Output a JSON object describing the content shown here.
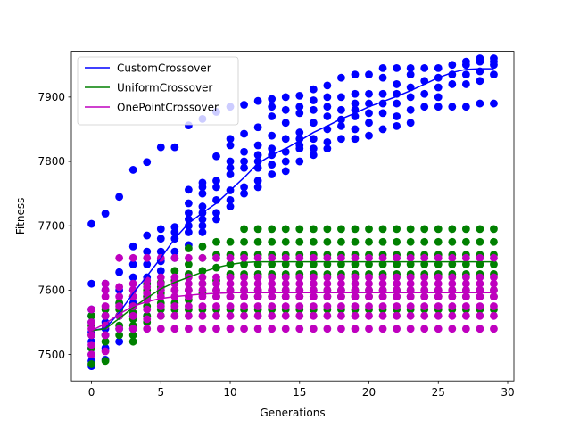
{
  "chart_data": {
    "type": "scatter",
    "xlabel": "Generations",
    "ylabel": "Fitness",
    "xlim": [
      -1.45,
      30.45
    ],
    "ylim": [
      7459,
      7971
    ],
    "xticks": [
      0,
      5,
      10,
      15,
      20,
      25,
      30
    ],
    "yticks": [
      7500,
      7600,
      7700,
      7800,
      7900
    ],
    "grid": false,
    "legend_position": "top-left",
    "generations": [
      0,
      1,
      2,
      3,
      4,
      5,
      6,
      7,
      8,
      9,
      10,
      11,
      12,
      13,
      14,
      15,
      16,
      17,
      18,
      19,
      20,
      21,
      22,
      23,
      24,
      25,
      26,
      27,
      28,
      29
    ],
    "series": [
      {
        "name": "CustomCrossover",
        "color": "#0000ff",
        "line": [
          7537,
          7541,
          7565,
          7595,
          7622,
          7650,
          7680,
          7704,
          7720,
          7735,
          7755,
          7775,
          7797,
          7810,
          7820,
          7832,
          7845,
          7855,
          7866,
          7875,
          7885,
          7893,
          7901,
          7910,
          7920,
          7930,
          7938,
          7943,
          7944,
          7944
        ],
        "points": [
          [
            7482,
            7490,
            7500,
            7510,
            7520,
            7535,
            7550,
            7560,
            7570,
            7610,
            7703
          ],
          [
            7492,
            7510,
            7530,
            7540,
            7550,
            7560,
            7600,
            7610,
            7719
          ],
          [
            7520,
            7540,
            7560,
            7580,
            7600,
            7628,
            7745
          ],
          [
            7540,
            7560,
            7580,
            7600,
            7620,
            7640,
            7668,
            7787
          ],
          [
            7560,
            7590,
            7610,
            7620,
            7640,
            7660,
            7685,
            7799
          ],
          [
            7600,
            7610,
            7630,
            7645,
            7660,
            7680,
            7695,
            7822
          ],
          [
            7650,
            7660,
            7680,
            7690,
            7698,
            7822
          ],
          [
            7670,
            7690,
            7700,
            7710,
            7720,
            7735,
            7756,
            7856
          ],
          [
            7690,
            7700,
            7710,
            7720,
            7730,
            7750,
            7760,
            7767,
            7866
          ],
          [
            7710,
            7720,
            7740,
            7760,
            7770,
            7808,
            7877
          ],
          [
            7730,
            7740,
            7755,
            7780,
            7790,
            7800,
            7825,
            7835,
            7885
          ],
          [
            7750,
            7760,
            7790,
            7800,
            7815,
            7843,
            7888
          ],
          [
            7760,
            7770,
            7790,
            7800,
            7810,
            7825,
            7853,
            7894
          ],
          [
            7780,
            7795,
            7810,
            7820,
            7840,
            7870,
            7885,
            7897
          ],
          [
            7785,
            7800,
            7815,
            7835,
            7860,
            7880,
            7900
          ],
          [
            7800,
            7820,
            7825,
            7835,
            7845,
            7875,
            7885,
            7902
          ],
          [
            7810,
            7820,
            7835,
            7860,
            7880,
            7895,
            7912
          ],
          [
            7820,
            7830,
            7850,
            7870,
            7885,
            7900,
            7918
          ],
          [
            7835,
            7855,
            7865,
            7880,
            7900,
            7930
          ],
          [
            7835,
            7850,
            7870,
            7880,
            7890,
            7905,
            7935
          ],
          [
            7840,
            7860,
            7875,
            7890,
            7905,
            7935
          ],
          [
            7850,
            7875,
            7890,
            7905,
            7930,
            7945
          ],
          [
            7855,
            7870,
            7890,
            7905,
            7920,
            7945
          ],
          [
            7860,
            7880,
            7900,
            7915,
            7935,
            7945
          ],
          [
            7885,
            7905,
            7925,
            7945
          ],
          [
            7885,
            7900,
            7915,
            7930,
            7945
          ],
          [
            7885,
            7920,
            7935,
            7950
          ],
          [
            7885,
            7920,
            7935,
            7950,
            7955
          ],
          [
            7890,
            7925,
            7940,
            7955,
            7960
          ],
          [
            7890,
            7935,
            7950,
            7955,
            7960
          ]
        ]
      },
      {
        "name": "UniformCrossover",
        "color": "#008000",
        "line": [
          7537,
          7540,
          7556,
          7573,
          7588,
          7602,
          7612,
          7620,
          7628,
          7635,
          7640,
          7643,
          7644,
          7644,
          7644,
          7644,
          7644,
          7644,
          7644,
          7644,
          7644,
          7644,
          7644,
          7644,
          7644,
          7644,
          7644,
          7644,
          7644,
          7644
        ],
        "points": [
          [
            7485,
            7510,
            7530,
            7545,
            7560
          ],
          [
            7490,
            7520,
            7530,
            7545,
            7560,
            7570
          ],
          [
            7530,
            7545,
            7560,
            7570,
            7580
          ],
          [
            7520,
            7530,
            7545,
            7555,
            7565,
            7575,
            7590
          ],
          [
            7550,
            7560,
            7575,
            7590,
            7600,
            7610
          ],
          [
            7560,
            7570,
            7580,
            7595,
            7605,
            7612
          ],
          [
            7570,
            7580,
            7600,
            7615,
            7630
          ],
          [
            7570,
            7585,
            7600,
            7625,
            7640,
            7665
          ],
          [
            7570,
            7595,
            7610,
            7630,
            7650,
            7668
          ],
          [
            7570,
            7590,
            7600,
            7615,
            7635,
            7655,
            7675
          ],
          [
            7570,
            7590,
            7600,
            7625,
            7640,
            7655,
            7675
          ],
          [
            7570,
            7590,
            7600,
            7625,
            7640,
            7655,
            7675,
            7695
          ],
          [
            7570,
            7590,
            7600,
            7625,
            7640,
            7655,
            7675,
            7695
          ],
          [
            7570,
            7590,
            7600,
            7625,
            7640,
            7655,
            7675,
            7695
          ],
          [
            7570,
            7590,
            7600,
            7625,
            7640,
            7655,
            7675,
            7695
          ],
          [
            7570,
            7590,
            7600,
            7625,
            7640,
            7655,
            7675,
            7695
          ],
          [
            7570,
            7590,
            7600,
            7625,
            7640,
            7655,
            7675,
            7695
          ],
          [
            7570,
            7590,
            7600,
            7625,
            7640,
            7655,
            7675,
            7695
          ],
          [
            7570,
            7590,
            7600,
            7625,
            7640,
            7655,
            7675,
            7695
          ],
          [
            7570,
            7590,
            7600,
            7625,
            7640,
            7655,
            7675,
            7695
          ],
          [
            7570,
            7590,
            7600,
            7625,
            7640,
            7655,
            7675,
            7695
          ],
          [
            7570,
            7590,
            7600,
            7625,
            7640,
            7655,
            7675,
            7695
          ],
          [
            7570,
            7590,
            7600,
            7625,
            7640,
            7655,
            7675,
            7695
          ],
          [
            7570,
            7590,
            7600,
            7625,
            7640,
            7655,
            7675,
            7695
          ],
          [
            7570,
            7590,
            7600,
            7625,
            7640,
            7655,
            7675,
            7695
          ],
          [
            7570,
            7590,
            7600,
            7625,
            7640,
            7655,
            7675,
            7695
          ],
          [
            7570,
            7590,
            7600,
            7625,
            7640,
            7655,
            7675,
            7695
          ],
          [
            7570,
            7590,
            7600,
            7625,
            7640,
            7655,
            7675,
            7695
          ],
          [
            7570,
            7590,
            7600,
            7625,
            7640,
            7655,
            7675,
            7695
          ],
          [
            7570,
            7590,
            7600,
            7625,
            7640,
            7655,
            7675,
            7695
          ]
        ]
      },
      {
        "name": "OnePointCrossover",
        "color": "#bf00bf",
        "line": [
          7537,
          7548,
          7563,
          7575,
          7582,
          7587,
          7590,
          7592,
          7594,
          7595,
          7596,
          7596,
          7596,
          7596,
          7596,
          7596,
          7596,
          7596,
          7596,
          7596,
          7596,
          7596,
          7596,
          7596,
          7596,
          7596,
          7596,
          7596,
          7596,
          7596
        ],
        "points": [
          [
            7500,
            7515,
            7530,
            7540,
            7550,
            7570
          ],
          [
            7505,
            7530,
            7545,
            7560,
            7575,
            7590,
            7600,
            7610
          ],
          [
            7540,
            7560,
            7575,
            7590,
            7605,
            7650
          ],
          [
            7540,
            7560,
            7575,
            7590,
            7600,
            7610,
            7650
          ],
          [
            7540,
            7555,
            7570,
            7585,
            7595,
            7605,
            7615,
            7650
          ],
          [
            7540,
            7560,
            7575,
            7590,
            7600,
            7610,
            7620,
            7650
          ],
          [
            7540,
            7560,
            7575,
            7590,
            7600,
            7610,
            7620,
            7650
          ],
          [
            7540,
            7560,
            7575,
            7590,
            7600,
            7610,
            7620,
            7650
          ],
          [
            7540,
            7560,
            7575,
            7590,
            7600,
            7610,
            7620,
            7650
          ],
          [
            7540,
            7560,
            7575,
            7590,
            7600,
            7610,
            7620,
            7650
          ],
          [
            7540,
            7560,
            7575,
            7590,
            7600,
            7610,
            7620,
            7650
          ],
          [
            7540,
            7560,
            7575,
            7590,
            7600,
            7610,
            7620,
            7650
          ],
          [
            7540,
            7560,
            7575,
            7590,
            7600,
            7610,
            7620,
            7650
          ],
          [
            7540,
            7560,
            7575,
            7590,
            7600,
            7610,
            7620,
            7650
          ],
          [
            7540,
            7560,
            7575,
            7590,
            7600,
            7610,
            7620,
            7650
          ],
          [
            7540,
            7560,
            7575,
            7590,
            7600,
            7610,
            7620,
            7650
          ],
          [
            7540,
            7560,
            7575,
            7590,
            7600,
            7610,
            7620,
            7650
          ],
          [
            7540,
            7560,
            7575,
            7590,
            7600,
            7610,
            7620,
            7650
          ],
          [
            7540,
            7560,
            7575,
            7590,
            7600,
            7610,
            7620,
            7650
          ],
          [
            7540,
            7560,
            7575,
            7590,
            7600,
            7610,
            7620,
            7650
          ],
          [
            7540,
            7560,
            7575,
            7590,
            7600,
            7610,
            7620,
            7650
          ],
          [
            7540,
            7560,
            7575,
            7590,
            7600,
            7610,
            7620,
            7650
          ],
          [
            7540,
            7560,
            7575,
            7590,
            7600,
            7610,
            7620,
            7650
          ],
          [
            7540,
            7560,
            7575,
            7590,
            7600,
            7610,
            7620,
            7650
          ],
          [
            7540,
            7560,
            7575,
            7590,
            7600,
            7610,
            7620,
            7650
          ],
          [
            7540,
            7560,
            7575,
            7590,
            7600,
            7610,
            7620,
            7650
          ],
          [
            7540,
            7560,
            7575,
            7590,
            7600,
            7610,
            7620,
            7650
          ],
          [
            7540,
            7560,
            7575,
            7590,
            7600,
            7610,
            7620,
            7650
          ],
          [
            7540,
            7560,
            7575,
            7590,
            7600,
            7610,
            7620,
            7650
          ],
          [
            7540,
            7560,
            7575,
            7590,
            7600,
            7610,
            7620,
            7650
          ]
        ]
      }
    ]
  }
}
